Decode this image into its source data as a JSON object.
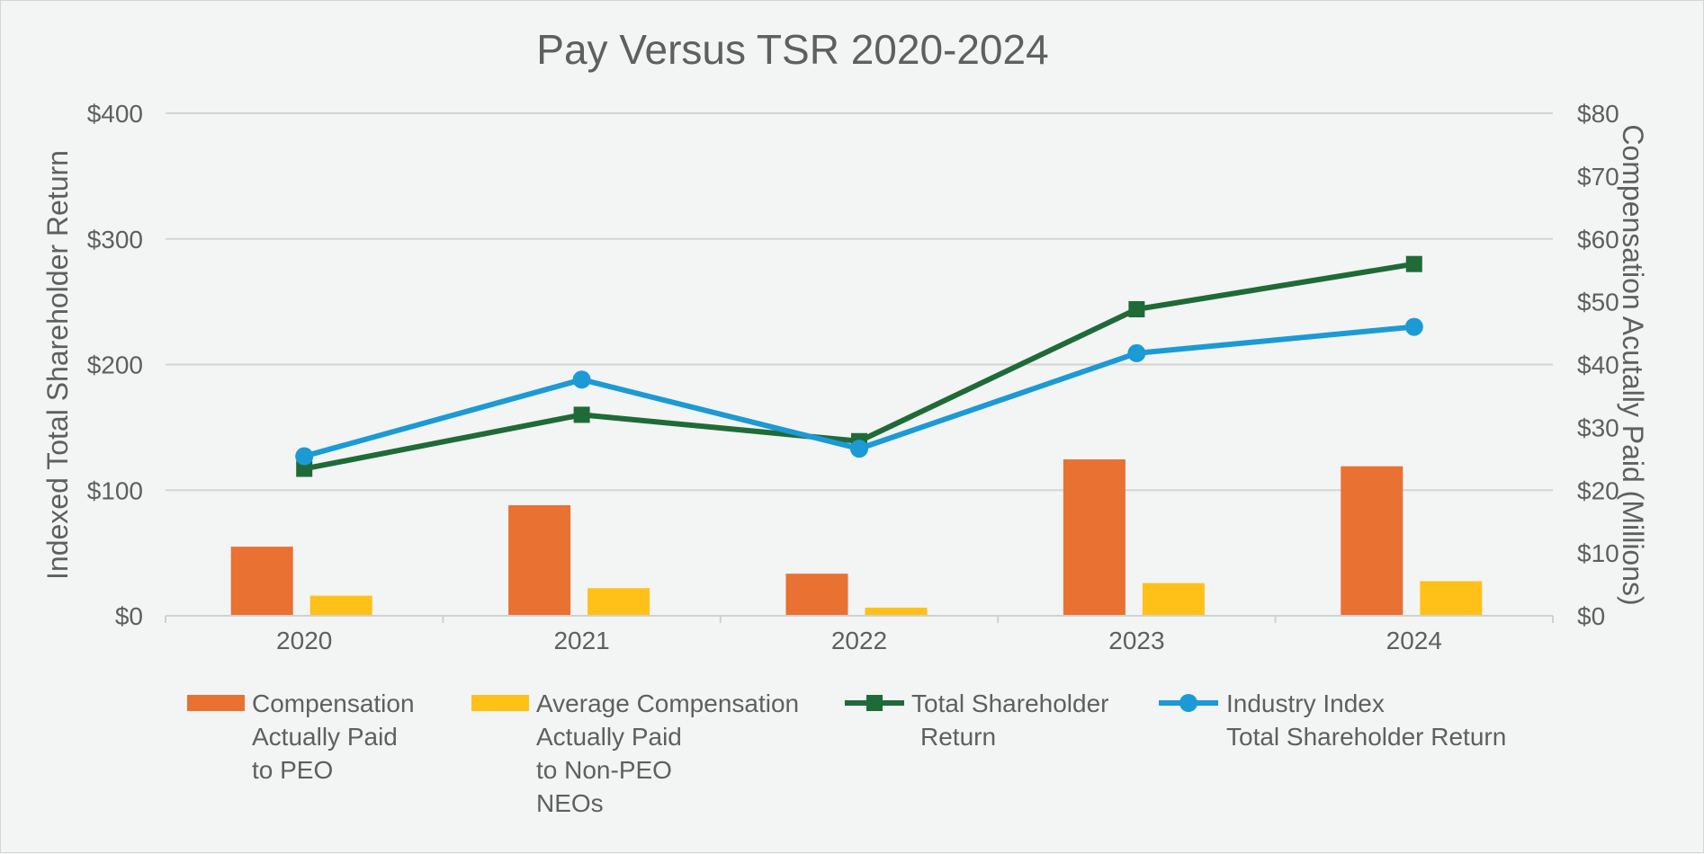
{
  "chart_data": {
    "type": "bar",
    "title": "Pay Versus TSR 2020-2024",
    "categories": [
      "2020",
      "2021",
      "2022",
      "2023",
      "2024"
    ],
    "ylabel": "Indexed Total Shareholder Return",
    "y2label": "Compensation Acutally Paid (Millions)",
    "ylim": [
      0,
      400
    ],
    "y2lim": [
      0,
      80
    ],
    "yticks": [
      "$0",
      "$100",
      "$200",
      "$300",
      "$400"
    ],
    "y2ticks": [
      "$0",
      "$10",
      "$20",
      "$30",
      "$40",
      "$50",
      "$60",
      "$70",
      "$80"
    ],
    "grid": true,
    "legend_position": "bottom",
    "series": [
      {
        "name": "Compensation Actually Paid to PEO",
        "legend_lines": [
          "Compensation",
          "Actually Paid",
          "to PEO"
        ],
        "kind": "bar",
        "axis": "right",
        "color": "#e97132",
        "values": [
          11.0,
          17.6,
          6.7,
          24.9,
          23.8
        ]
      },
      {
        "name": "Average Compensation Actually Paid to Non-PEO NEOs",
        "legend_lines": [
          "Average Compensation",
          "Actually Paid",
          "to Non-PEO",
          "NEOs"
        ],
        "kind": "bar",
        "axis": "right",
        "color": "#ffc118",
        "values": [
          3.2,
          4.4,
          1.3,
          5.2,
          5.5
        ]
      },
      {
        "name": "Total Shareholder Return",
        "legend_lines": [
          "Total Shareholder",
          "Return"
        ],
        "kind": "line",
        "marker": "square",
        "axis": "left",
        "color": "#1f6b38",
        "values": [
          117,
          160,
          139,
          244,
          280
        ]
      },
      {
        "name": "Industry Index Total Shareholder Return",
        "legend_lines": [
          "Industry Index",
          "Total Shareholder Return"
        ],
        "kind": "line",
        "marker": "circle",
        "axis": "left",
        "color": "#1b9ad6",
        "values": [
          127,
          188,
          133,
          209,
          230
        ]
      }
    ]
  }
}
